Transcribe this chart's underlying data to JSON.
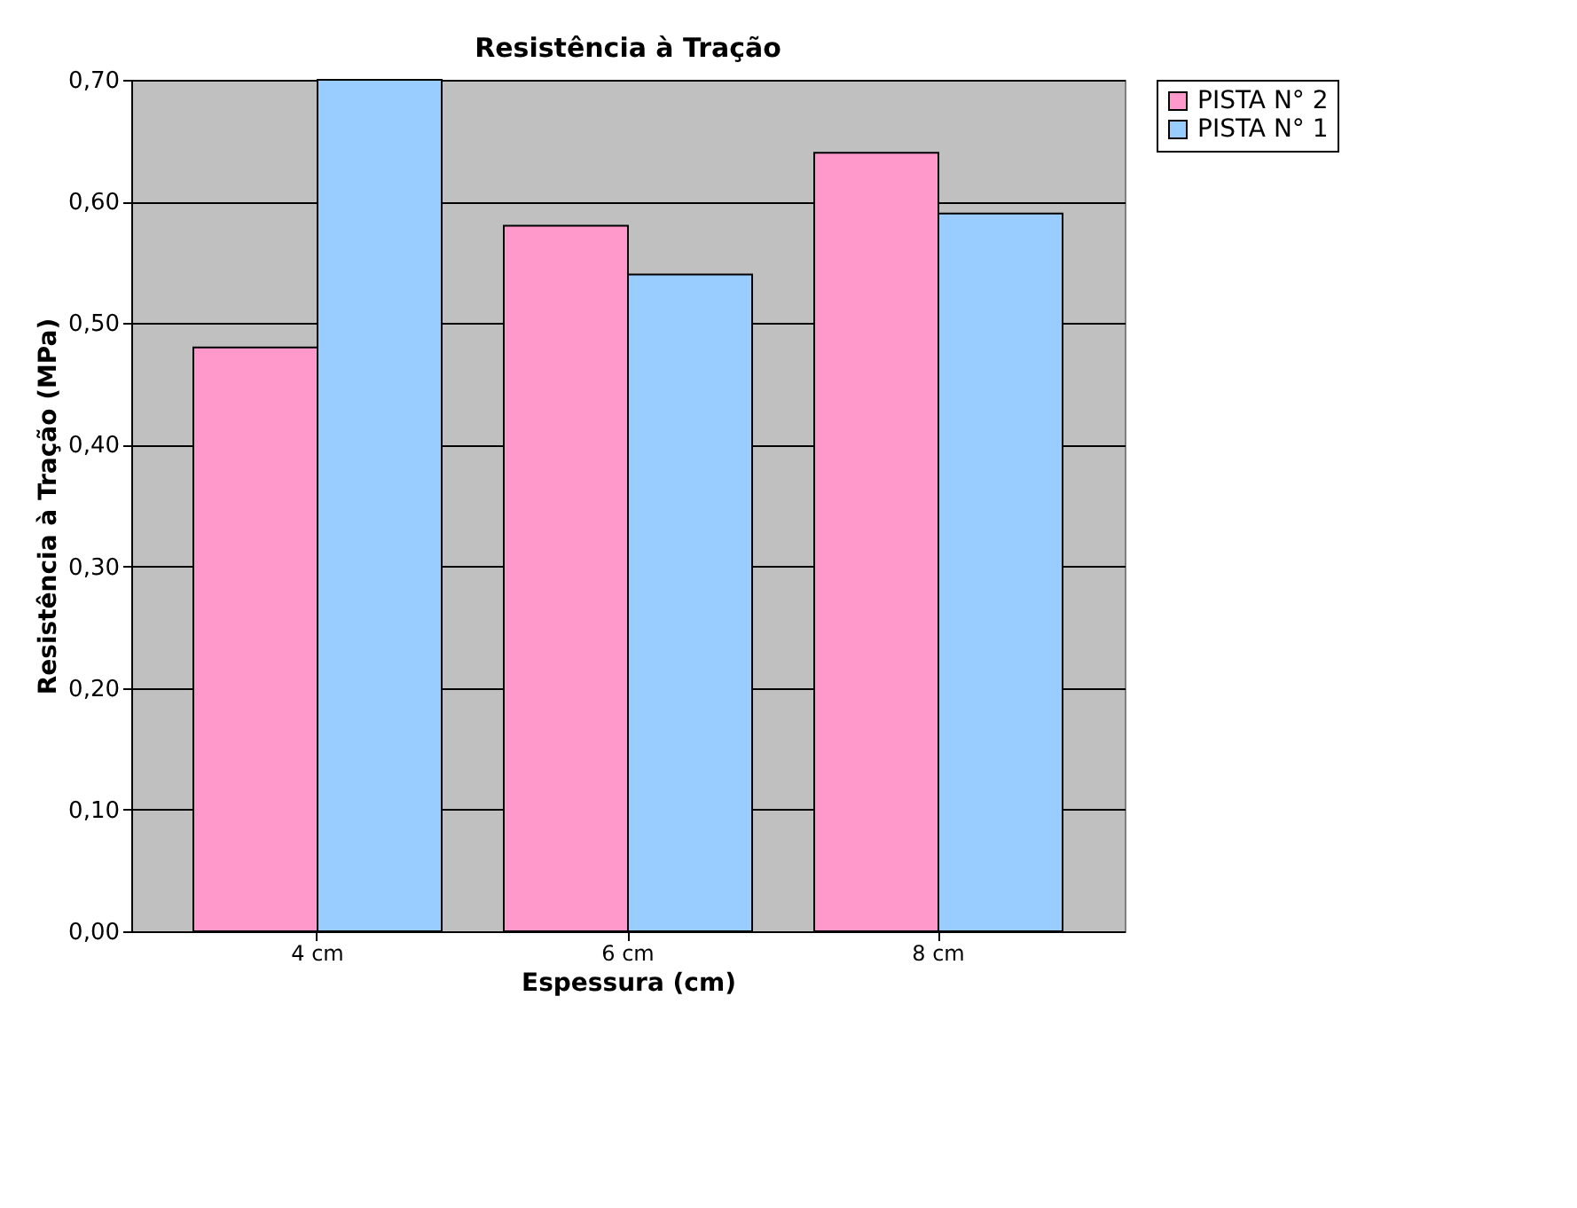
{
  "chart_data": {
    "type": "bar",
    "title": "Resistência à Tração",
    "xlabel": "Espessura (cm)",
    "ylabel": "Resistência à Tração (MPa)",
    "categories": [
      "4 cm",
      "6 cm",
      "8 cm"
    ],
    "series": [
      {
        "name": "PISTA N° 2",
        "color": "#ff99cc",
        "values": [
          0.48,
          0.58,
          0.64
        ]
      },
      {
        "name": "PISTA N° 1",
        "color": "#99ccff",
        "values": [
          0.7,
          0.54,
          0.59
        ]
      }
    ],
    "ylim": [
      0,
      0.7
    ],
    "yticks": [
      {
        "value": 0,
        "label": "0,00"
      },
      {
        "value": 0.1,
        "label": "0,10"
      },
      {
        "value": 0.2,
        "label": "0,20"
      },
      {
        "value": 0.3,
        "label": "0,30"
      },
      {
        "value": 0.4,
        "label": "0,40"
      },
      {
        "value": 0.5,
        "label": "0,50"
      },
      {
        "value": 0.6,
        "label": "0,60"
      },
      {
        "value": 0.7,
        "label": "0,70"
      }
    ],
    "grid": "y",
    "legend": "right"
  }
}
